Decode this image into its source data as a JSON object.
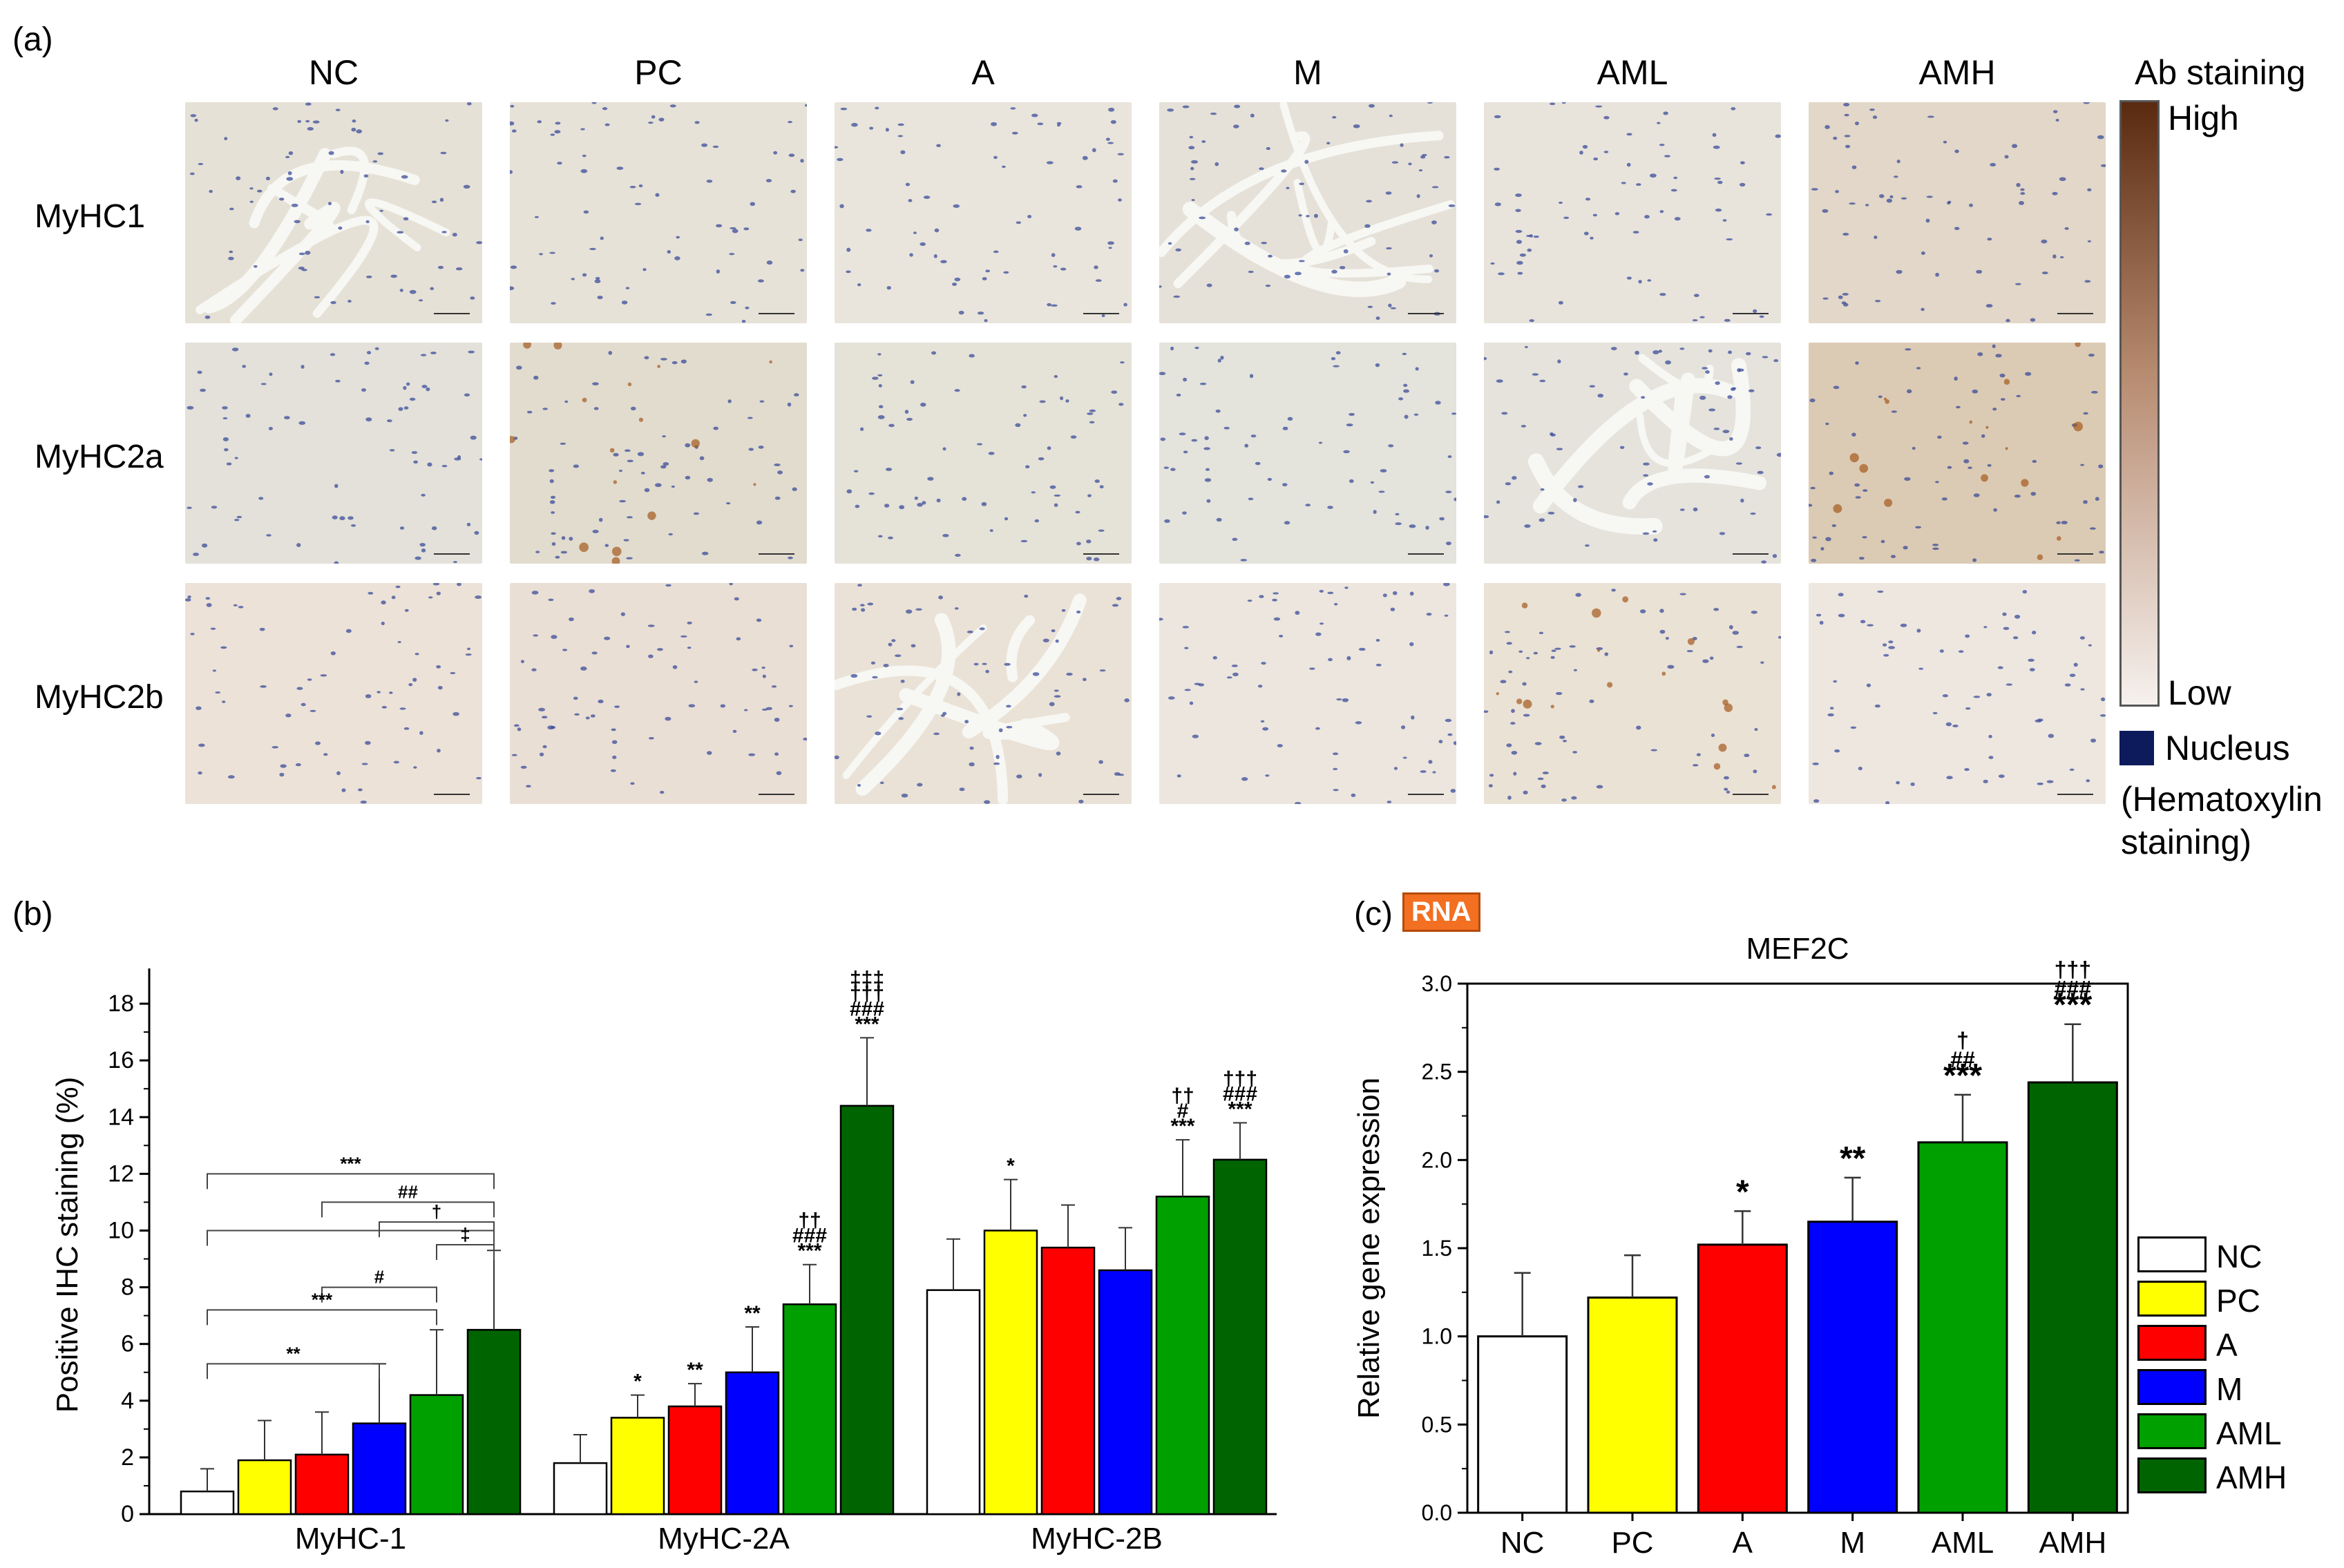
{
  "panel_a": {
    "letter": "(a)",
    "columns": [
      "NC",
      "PC",
      "A",
      "M",
      "AML",
      "AMH"
    ],
    "rows": [
      "MyHC1",
      "MyHC2a",
      "MyHC2b"
    ],
    "scale": {
      "title": "Ab staining",
      "high": "High",
      "low": "Low",
      "nucleus_label": "Nucleus",
      "nucleus_note": "(Hematoxylin staining)",
      "high_color": "#5a2a10",
      "low_color": "#f6f1ee",
      "nucleus_color": "#0d1a5c"
    }
  },
  "panel_b": {
    "letter": "(b)"
  },
  "panel_c": {
    "letter": "(c)",
    "badge": "RNA"
  },
  "legend": {
    "items": [
      {
        "label": "NC",
        "color": "#ffffff"
      },
      {
        "label": "PC",
        "color": "#ffff00"
      },
      {
        "label": "A",
        "color": "#ff0000"
      },
      {
        "label": "M",
        "color": "#0000ff"
      },
      {
        "label": "AML",
        "color": "#00a000"
      },
      {
        "label": "AMH",
        "color": "#006400"
      }
    ]
  },
  "chart_data": [
    {
      "type": "bar",
      "id": "panel-b",
      "title": "",
      "ylabel": "Positive IHC staining (%)",
      "xlabel": "",
      "ylim": [
        0,
        19
      ],
      "yticks": [
        0,
        2,
        4,
        6,
        8,
        10,
        12,
        14,
        16,
        18
      ],
      "categories": [
        "MyHC-1",
        "MyHC-2A",
        "MyHC-2B"
      ],
      "series": [
        {
          "name": "NC",
          "values": [
            0.8,
            1.8,
            7.9
          ],
          "errors": [
            0.8,
            1.0,
            1.8
          ]
        },
        {
          "name": "PC",
          "values": [
            1.9,
            3.4,
            10.0
          ],
          "errors": [
            1.4,
            0.8,
            1.8
          ]
        },
        {
          "name": "A",
          "values": [
            2.1,
            3.8,
            9.4
          ],
          "errors": [
            1.5,
            0.8,
            1.5
          ]
        },
        {
          "name": "M",
          "values": [
            3.2,
            5.0,
            8.6
          ],
          "errors": [
            2.1,
            1.6,
            1.5
          ]
        },
        {
          "name": "AML",
          "values": [
            4.2,
            7.4,
            11.2
          ],
          "errors": [
            2.3,
            1.4,
            2.0
          ]
        },
        {
          "name": "AMH",
          "values": [
            6.5,
            14.4,
            12.5
          ],
          "errors": [
            2.8,
            2.4,
            1.3
          ]
        }
      ],
      "annotations": [
        {
          "category": 1,
          "series": 1,
          "text": [
            "*"
          ]
        },
        {
          "category": 1,
          "series": 2,
          "text": [
            "**"
          ]
        },
        {
          "category": 1,
          "series": 3,
          "text": [
            "**"
          ]
        },
        {
          "category": 1,
          "series": 4,
          "text": [
            "††",
            "###",
            "***"
          ]
        },
        {
          "category": 1,
          "series": 5,
          "text": [
            "‡‡‡",
            "†††",
            "###",
            "***"
          ]
        },
        {
          "category": 2,
          "series": 1,
          "text": [
            "*"
          ]
        },
        {
          "category": 2,
          "series": 4,
          "text": [
            "††",
            "#",
            "***"
          ]
        },
        {
          "category": 2,
          "series": 5,
          "text": [
            "†††",
            "###",
            "***"
          ]
        }
      ],
      "brackets": [
        {
          "from": 0,
          "to": 5,
          "y": 12.0,
          "text": "***"
        },
        {
          "from": 0,
          "to": 5,
          "y": 10.0
        },
        {
          "from": 2,
          "to": 5,
          "y": 11.0,
          "text": "##"
        },
        {
          "from": 3,
          "to": 5,
          "y": 10.3,
          "text": "†"
        },
        {
          "from": 4,
          "to": 5,
          "y": 9.5,
          "text": "‡"
        },
        {
          "from": 2,
          "to": 4,
          "y": 8.0,
          "text": "#"
        },
        {
          "from": 0,
          "to": 4,
          "y": 7.2,
          "text": "***"
        },
        {
          "from": 0,
          "to": 3,
          "y": 5.3,
          "text": "**"
        }
      ]
    },
    {
      "type": "bar",
      "id": "panel-c",
      "title": "MEF2C",
      "ylabel": "Relative gene expression",
      "xlabel": "",
      "ylim": [
        0,
        3.0
      ],
      "yticks": [
        0.0,
        0.5,
        1.0,
        1.5,
        2.0,
        2.5,
        3.0
      ],
      "categories": [
        "NC",
        "PC",
        "A",
        "M",
        "AML",
        "AMH"
      ],
      "values": [
        1.0,
        1.22,
        1.52,
        1.65,
        2.1,
        2.44
      ],
      "errors": [
        0.36,
        0.24,
        0.19,
        0.25,
        0.27,
        0.33
      ],
      "annotations": [
        {
          "index": 2,
          "text": [
            "*"
          ]
        },
        {
          "index": 3,
          "text": [
            "**"
          ]
        },
        {
          "index": 4,
          "text": [
            "†",
            "##",
            "***"
          ]
        },
        {
          "index": 5,
          "text": [
            "†††",
            "###",
            "***"
          ]
        }
      ]
    }
  ]
}
